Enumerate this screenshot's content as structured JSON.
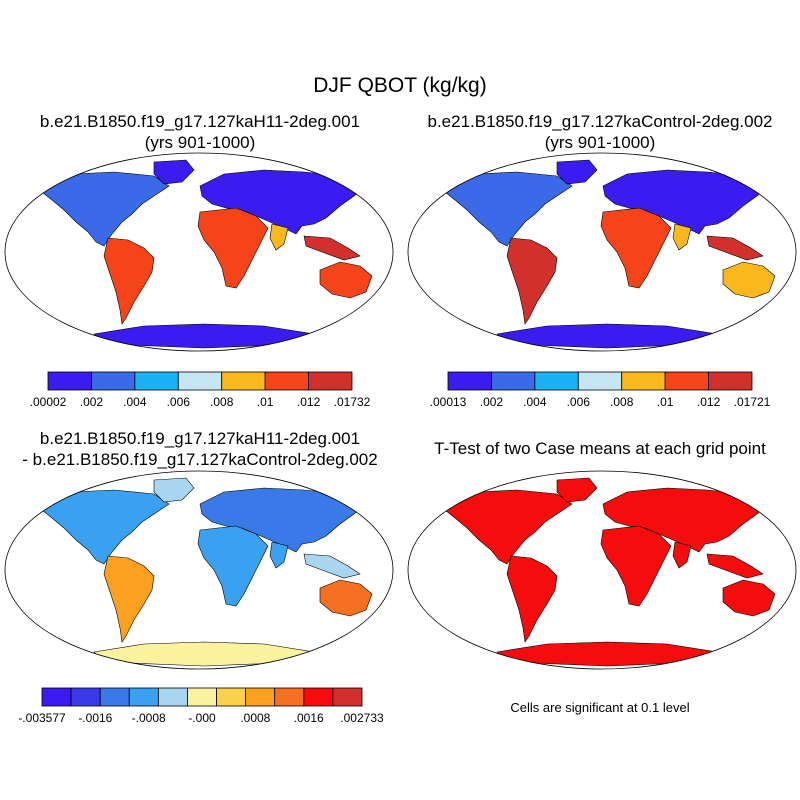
{
  "chart_data": {
    "type": "heatmap",
    "title": "DJF QBOT (kg/kg)",
    "panels": [
      {
        "title_line1": "b.e21.B1850.f19_g17.127kaH11-2deg.001",
        "title_line2": "(yrs 901-1000)",
        "colorbar_colors": [
          "#3a1cf0",
          "#3a6ae8",
          "#19b2f5",
          "#c7e6f5",
          "#fbb81d",
          "#f5441a",
          "#d2302c"
        ],
        "colorbar_labels": [
          ".00002",
          ".002",
          ".004",
          ".006",
          ".008",
          ".01",
          ".012",
          ".01732"
        ]
      },
      {
        "title_line1": "b.e21.B1850.f19_g17.127kaControl-2deg.002",
        "title_line2": "(yrs 901-1000)",
        "colorbar_colors": [
          "#3a1cf0",
          "#3a6ae8",
          "#19b2f5",
          "#c7e6f5",
          "#fbb81d",
          "#f5441a",
          "#d2302c"
        ],
        "colorbar_labels": [
          ".00013",
          ".002",
          ".004",
          ".006",
          ".008",
          ".01",
          ".012",
          ".01721"
        ]
      },
      {
        "title_line1": "b.e21.B1850.f19_g17.127kaH11-2deg.001",
        "title_line2": "- b.e21.B1850.f19_g17.127kaControl-2deg.002",
        "colorbar_colors": [
          "#3a1cf0",
          "#3a3ae8",
          "#3a7ae8",
          "#3aa0f0",
          "#a8d6f0",
          "#fbf2a0",
          "#fbd04a",
          "#fba020",
          "#f57020",
          "#f50c0c",
          "#d2302c"
        ],
        "colorbar_labels": [
          "-.003577",
          "-.0016",
          "-.0008",
          "-.000",
          ".0008",
          ".0016",
          ".002733"
        ]
      },
      {
        "title_line1": "T-Test of two Case means at each grid point",
        "note": "Cells are significant at 0.1 level",
        "fill_color": "#f50c0c"
      }
    ]
  }
}
